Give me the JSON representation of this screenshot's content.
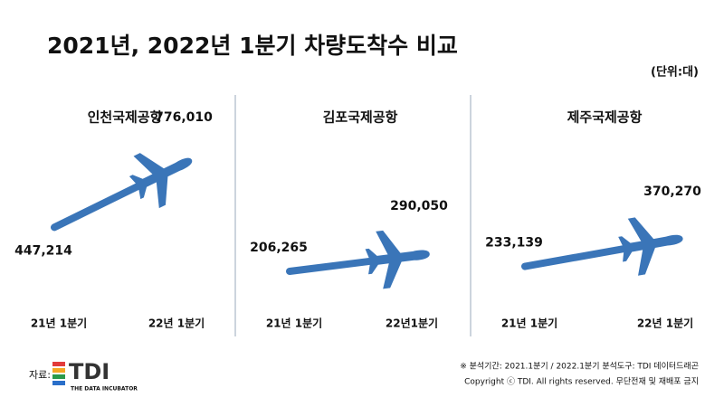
{
  "title": "2021년, 2022년 1분기 차량도착수 비교",
  "unit": "(단위:대)",
  "chart_data": [
    {
      "type": "line",
      "title": "인천국제공항",
      "categories": [
        "21년 1분기",
        "22년 1분기"
      ],
      "values": [
        447214,
        776010
      ],
      "value_labels": [
        "447,214",
        "776,010"
      ],
      "color": "#3a75b8"
    },
    {
      "type": "line",
      "title": "김포국제공항",
      "categories": [
        "21년 1분기",
        "22년1분기"
      ],
      "values": [
        206265,
        290050
      ],
      "value_labels": [
        "206,265",
        "290,050"
      ],
      "color": "#3a75b8"
    },
    {
      "type": "line",
      "title": "제주국제공항",
      "categories": [
        "21년 1분기",
        "22년 1분기"
      ],
      "values": [
        233139,
        370270
      ],
      "value_labels": [
        "233,139",
        "370,270"
      ],
      "color": "#3a75b8"
    }
  ],
  "footer": {
    "source_label": "자료:",
    "logo": "TDI",
    "logo_subtitle": "THE DATA INCUBATOR",
    "note": "※ 분석기간: 2021.1분기 / 2022.1분기   분석도구: TDI 데이터드래곤",
    "copyright": "Copyright ⓒ TDI. All rights reserved. 무단전재 및 재배포 금지"
  }
}
